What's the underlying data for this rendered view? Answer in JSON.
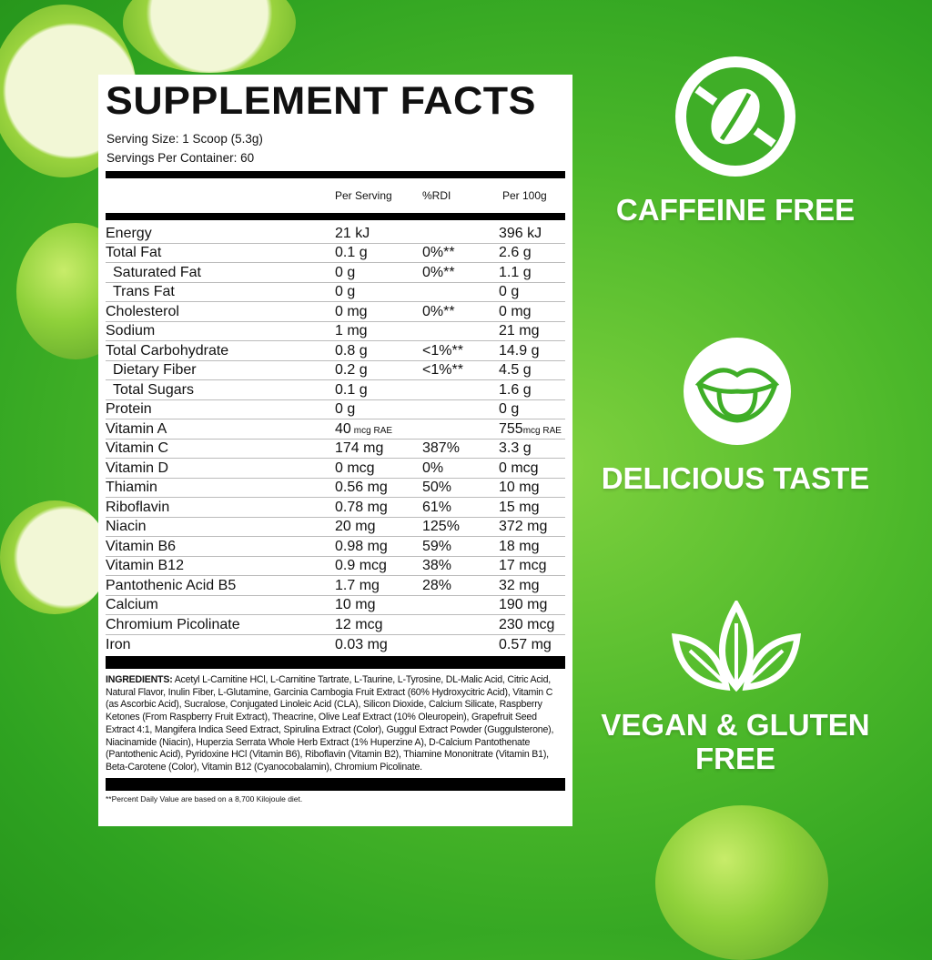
{
  "panel": {
    "title": "SUPPLEMENT FACTS",
    "serving_size": "Serving Size: 1 Scoop (5.3g)",
    "servings_per_container": "Servings Per Container: 60",
    "headers": [
      "Per Serving",
      "%RDI",
      "Per 100g"
    ],
    "rows": [
      {
        "name": "Energy",
        "per_serving": "21 kJ",
        "rdi": "",
        "per_100g": "396 kJ"
      },
      {
        "name": "Total Fat",
        "per_serving": "0.1 g",
        "rdi": "0%**",
        "per_100g": "2.6 g"
      },
      {
        "name": "Saturated Fat",
        "per_serving": "0 g",
        "rdi": "0%**",
        "per_100g": "1.1 g",
        "indent": true
      },
      {
        "name": "Trans Fat",
        "per_serving": "0 g",
        "rdi": "",
        "per_100g": "0 g",
        "indent": true
      },
      {
        "name": "Cholesterol",
        "per_serving": "0 mg",
        "rdi": "0%**",
        "per_100g": "0 mg"
      },
      {
        "name": "Sodium",
        "per_serving": "1 mg",
        "rdi": "",
        "per_100g": "21 mg"
      },
      {
        "name": "Total Carbohydrate",
        "per_serving": "0.8 g",
        "rdi": "<1%**",
        "per_100g": "14.9 g"
      },
      {
        "name": "Dietary Fiber",
        "per_serving": "0.2 g",
        "rdi": "<1%**",
        "per_100g": "4.5 g",
        "indent": true
      },
      {
        "name": "Total Sugars",
        "per_serving": "0.1 g",
        "rdi": "",
        "per_100g": "1.6 g",
        "indent": true
      },
      {
        "name": "Protein",
        "per_serving": "0 g",
        "rdi": "",
        "per_100g": "0 g"
      },
      {
        "name": "Vitamin A",
        "per_serving": "40",
        "per_serving_unit": "mcg RAE",
        "rdi": "",
        "per_100g": "755",
        "per_100g_unit": "mcg RAE"
      },
      {
        "name": "Vitamin C",
        "per_serving": "174 mg",
        "rdi": "387%",
        "per_100g": "3.3 g"
      },
      {
        "name": "Vitamin D",
        "per_serving": "0 mcg",
        "rdi": "0%",
        "per_100g": "0 mcg"
      },
      {
        "name": "Thiamin",
        "per_serving": "0.56 mg",
        "rdi": "50%",
        "per_100g": "10 mg"
      },
      {
        "name": "Riboflavin",
        "per_serving": "0.78 mg",
        "rdi": "61%",
        "per_100g": "15 mg"
      },
      {
        "name": "Niacin",
        "per_serving": "20 mg",
        "rdi": "125%",
        "per_100g": "372 mg"
      },
      {
        "name": "Vitamin B6",
        "per_serving": "0.98 mg",
        "rdi": "59%",
        "per_100g": "18 mg"
      },
      {
        "name": "Vitamin B12",
        "per_serving": "0.9 mcg",
        "rdi": "38%",
        "per_100g": "17 mcg"
      },
      {
        "name": "Pantothenic Acid B5",
        "per_serving": "1.7 mg",
        "rdi": "28%",
        "per_100g": "32 mg"
      },
      {
        "name": "Calcium",
        "per_serving": "10 mg",
        "rdi": "",
        "per_100g": "190 mg"
      },
      {
        "name": "Chromium Picolinate",
        "per_serving": "12 mcg",
        "rdi": "",
        "per_100g": "230 mcg"
      },
      {
        "name": "Iron",
        "per_serving": "0.03 mg",
        "rdi": "",
        "per_100g": "0.57 mg"
      }
    ],
    "ingredients_label": "INGREDIENTS:",
    "ingredients": " Acetyl L-Carnitine HCl, L-Carnitine Tartrate, L-Taurine, L-Tyrosine, DL-Malic Acid, Citric Acid, Natural Flavor, Inulin Fiber, L-Glutamine, Garcinia Cambogia Fruit Extract (60% Hydroxycitric Acid), Vitamin C (as Ascorbic Acid), Sucralose, Conjugated Linoleic Acid (CLA), Silicon Dioxide, Calcium Silicate, Raspberry Ketones (From Raspberry Fruit Extract), Theacrine, Olive Leaf Extract (10% Oleuropein), Grapefruit Seed Extract 4:1, Mangifera Indica Seed Extract, Spirulina Extract (Color), Guggul Extract Powder (Guggulsterone), Niacinamide (Niacin), Huperzia Serrata Whole Herb Extract (1% Huperzine A), D-Calcium Pantothenate (Pantothenic Acid), Pyridoxine HCl (Vitamin B6), Riboflavin (Vitamin B2), Thiamine Mononitrate (Vitamin B1), Beta-Carotene (Color), Vitamin B12 (Cyanocobalamin), Chromium Picolinate.",
    "footnote": "**Percent Daily Value are based on a 8,700 Kilojoule diet."
  },
  "claims": [
    {
      "icon": "no-coffee-bean-icon",
      "label": "CAFFEINE FREE"
    },
    {
      "icon": "lips-tongue-icon",
      "label": "DELICIOUS TASTE"
    },
    {
      "icon": "leaves-icon",
      "label": "VEGAN & GLUTEN FREE"
    }
  ],
  "colors": {
    "background": "#4cb82a",
    "apple": "#8fd13a",
    "flesh": "#eef6c8"
  }
}
